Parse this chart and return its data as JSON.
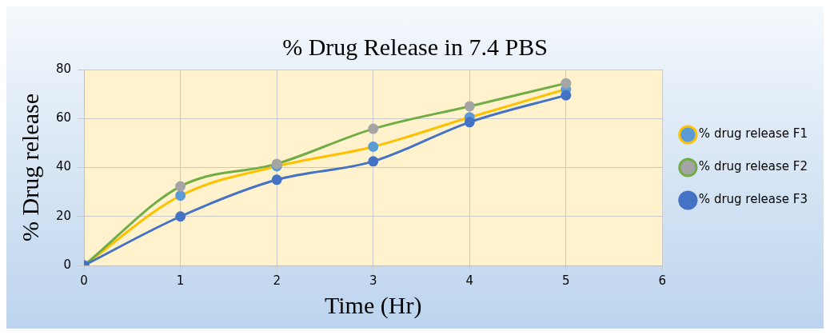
{
  "chart_data": {
    "type": "line",
    "title": "% Drug Release in 7.4 PBS",
    "xlabel": "Time (Hr)",
    "ylabel": "% Drug release",
    "x": [
      0,
      1,
      2,
      3,
      4,
      5
    ],
    "series": [
      {
        "name": "% drug release F1",
        "color": "#ffc000",
        "colors": [
          "#5b9bd5",
          "#5b9bd5",
          "#5b9bd5",
          "#5b9bd5",
          "#5b9bd5",
          "#5b9bd5"
        ],
        "values": [
          0,
          28.5,
          40.5,
          48.5,
          60.5,
          72
        ]
      },
      {
        "name": "% drug release F2",
        "color": "#70ad47",
        "colors": [
          "#a5a5a5",
          "#a5a5a5",
          "#a5a5a5",
          "#a5a5a5",
          "#a5a5a5",
          "#a5a5a5"
        ],
        "values": [
          0,
          32.3,
          41.5,
          55.8,
          65,
          74.4
        ]
      },
      {
        "name": "% drug release F3",
        "color": "#4472c4",
        "colors": [
          "#4472c4",
          "#4472c4",
          "#4472c4",
          "#4472c4",
          "#4472c4",
          "#4472c4"
        ],
        "values": [
          0,
          20,
          35,
          42.5,
          58.5,
          69.5
        ]
      }
    ],
    "xlim": [
      0,
      6
    ],
    "xticks": [
      0,
      1,
      2,
      3,
      4,
      5,
      6
    ],
    "ylim": [
      0,
      80
    ],
    "yticks": [
      0,
      20,
      40,
      60,
      80
    ],
    "grid": true,
    "legend": "right",
    "marker": "circle",
    "line_style": "solid"
  }
}
